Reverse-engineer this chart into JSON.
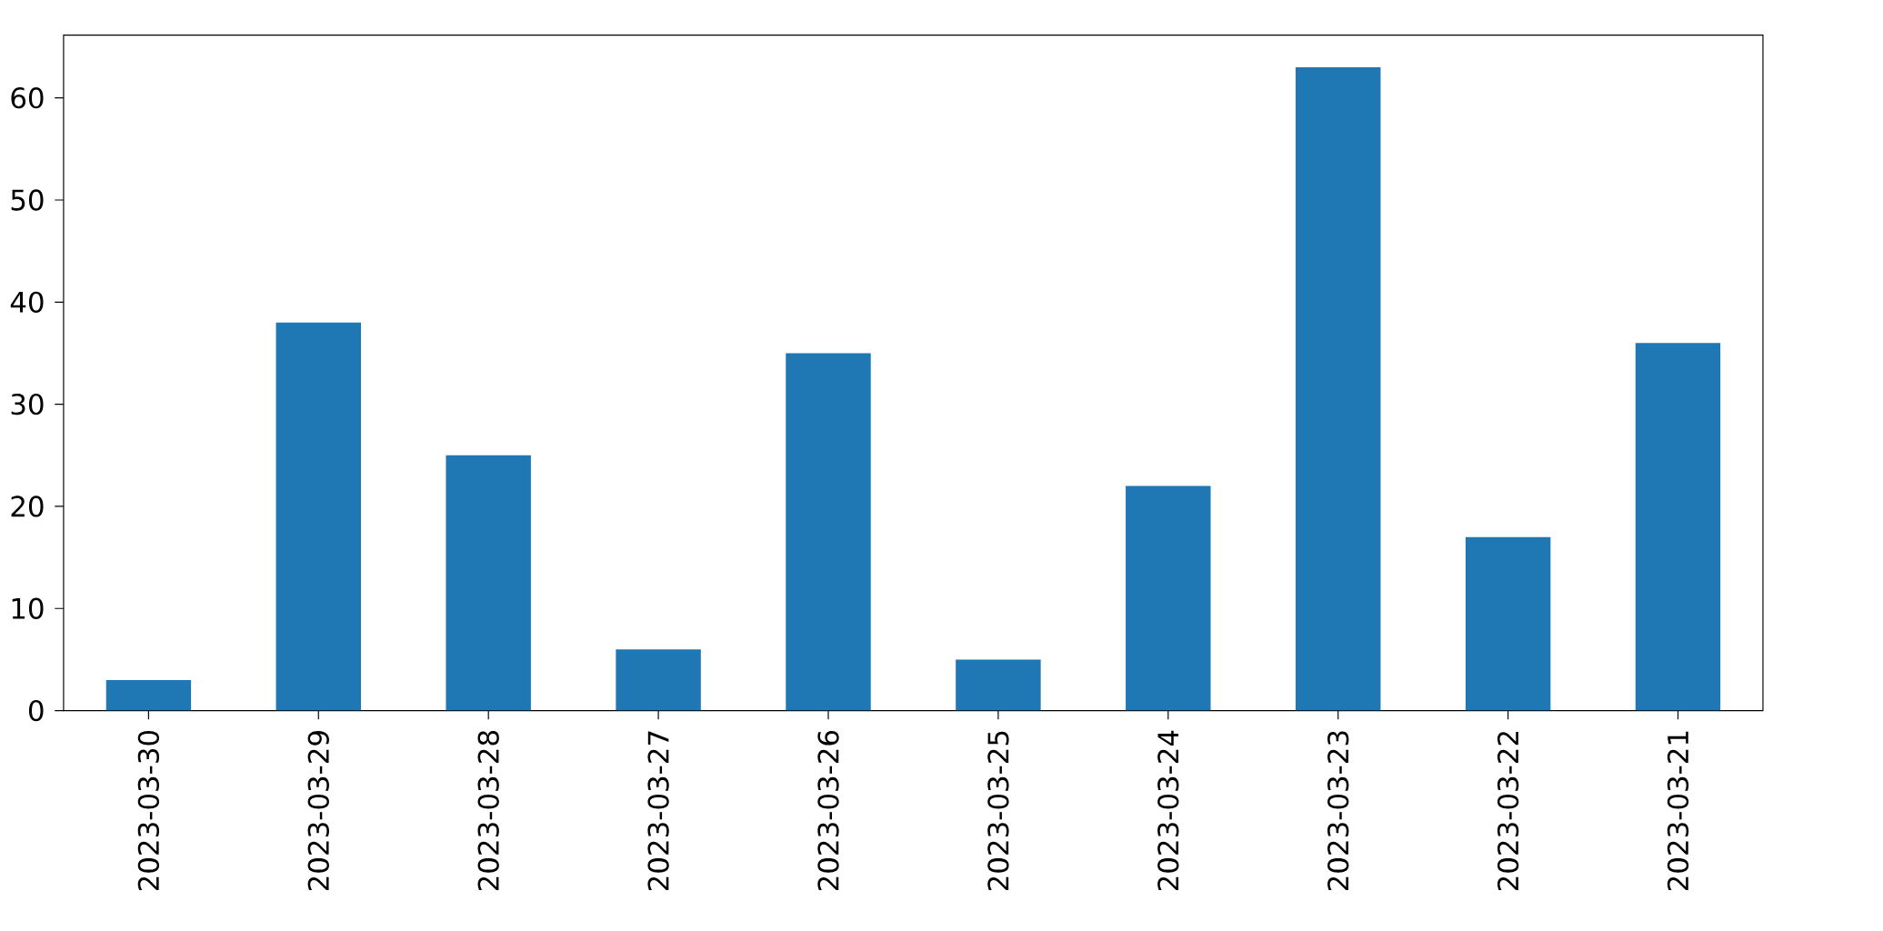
{
  "chart_data": {
    "type": "bar",
    "categories": [
      "2023-03-30",
      "2023-03-29",
      "2023-03-28",
      "2023-03-27",
      "2023-03-26",
      "2023-03-25",
      "2023-03-24",
      "2023-03-23",
      "2023-03-22",
      "2023-03-21"
    ],
    "values": [
      3,
      38,
      25,
      6,
      35,
      5,
      22,
      63,
      17,
      36
    ],
    "color": "#1f77b4",
    "ylim": [
      0,
      66.15
    ],
    "yticks": [
      0,
      10,
      20,
      30,
      40,
      50,
      60
    ]
  }
}
